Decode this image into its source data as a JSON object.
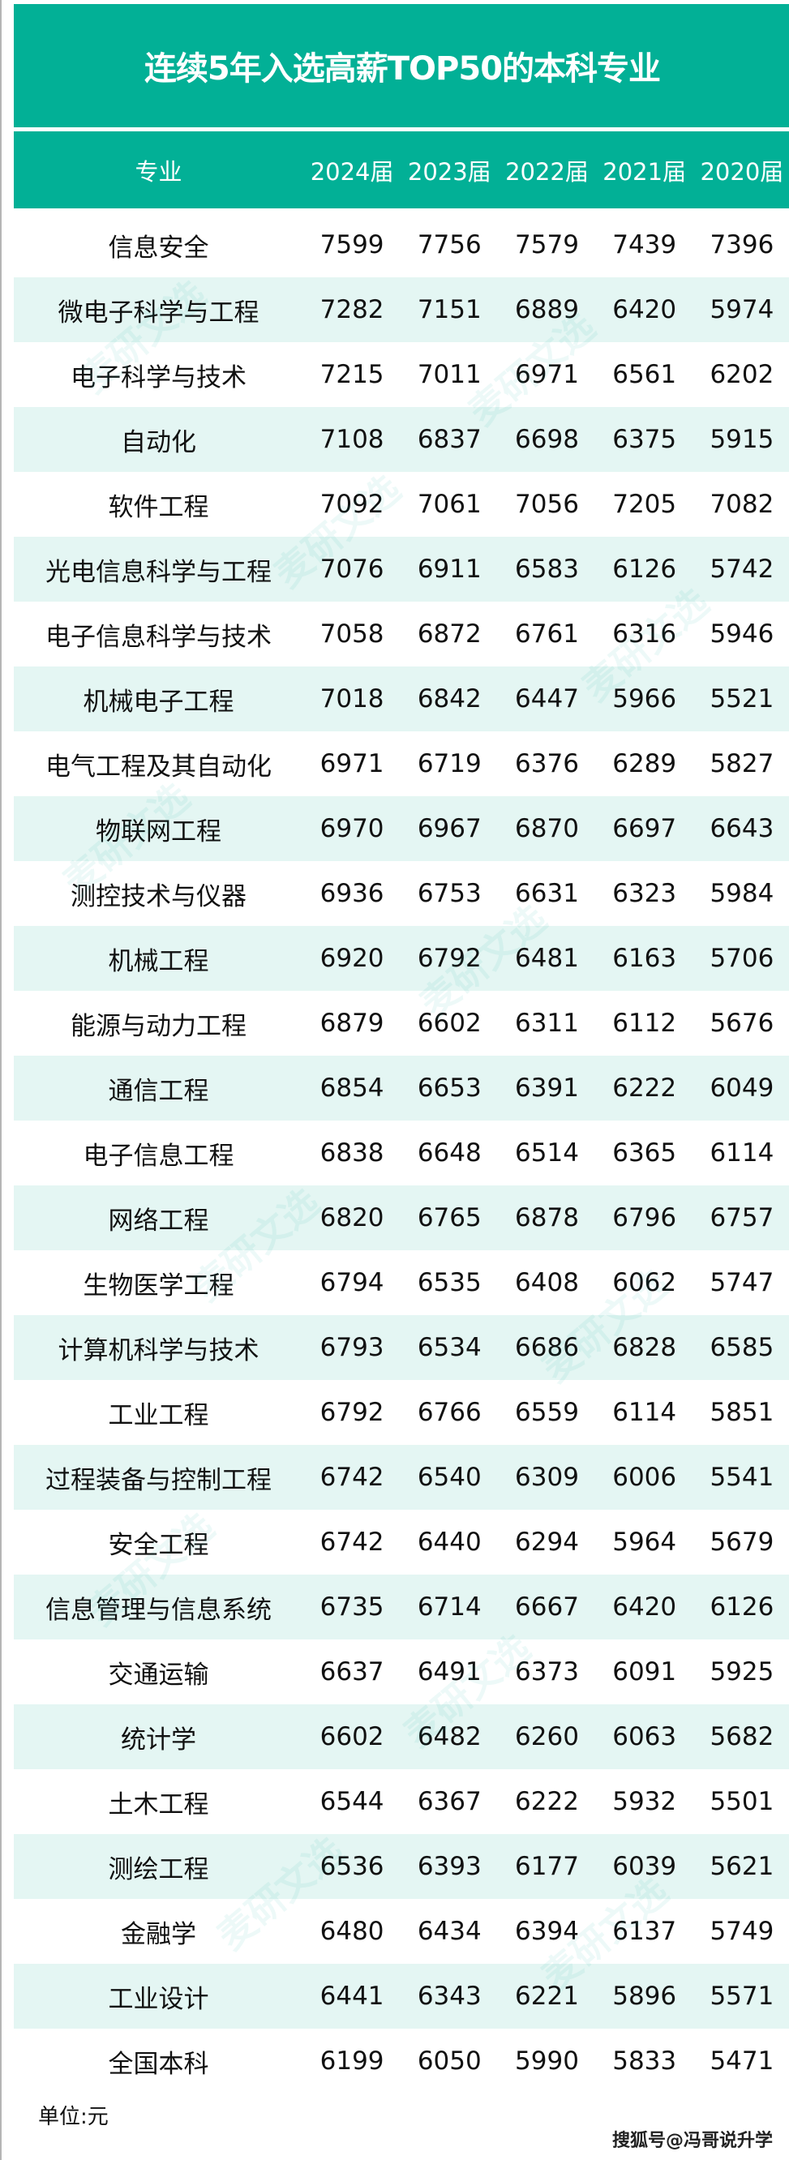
{
  "title": "连续5年入选高薪TOP50的本科专业",
  "columns": [
    "专业",
    "2024届",
    "2023届",
    "2022届",
    "2021届",
    "2020届"
  ],
  "rows": [
    [
      "信息安全",
      "7599",
      "7756",
      "7579",
      "7439",
      "7396"
    ],
    [
      "微电子科学与工程",
      "7282",
      "7151",
      "6889",
      "6420",
      "5974"
    ],
    [
      "电子科学与技术",
      "7215",
      "7011",
      "6971",
      "6561",
      "6202"
    ],
    [
      "自动化",
      "7108",
      "6837",
      "6698",
      "6375",
      "5915"
    ],
    [
      "软件工程",
      "7092",
      "7061",
      "7056",
      "7205",
      "7082"
    ],
    [
      "光电信息科学与工程",
      "7076",
      "6911",
      "6583",
      "6126",
      "5742"
    ],
    [
      "电子信息科学与技术",
      "7058",
      "6872",
      "6761",
      "6316",
      "5946"
    ],
    [
      "机械电子工程",
      "7018",
      "6842",
      "6447",
      "5966",
      "5521"
    ],
    [
      "电气工程及其自动化",
      "6971",
      "6719",
      "6376",
      "6289",
      "5827"
    ],
    [
      "物联网工程",
      "6970",
      "6967",
      "6870",
      "6697",
      "6643"
    ],
    [
      "测控技术与仪器",
      "6936",
      "6753",
      "6631",
      "6323",
      "5984"
    ],
    [
      "机械工程",
      "6920",
      "6792",
      "6481",
      "6163",
      "5706"
    ],
    [
      "能源与动力工程",
      "6879",
      "6602",
      "6311",
      "6112",
      "5676"
    ],
    [
      "通信工程",
      "6854",
      "6653",
      "6391",
      "6222",
      "6049"
    ],
    [
      "电子信息工程",
      "6838",
      "6648",
      "6514",
      "6365",
      "6114"
    ],
    [
      "网络工程",
      "6820",
      "6765",
      "6878",
      "6796",
      "6757"
    ],
    [
      "生物医学工程",
      "6794",
      "6535",
      "6408",
      "6062",
      "5747"
    ],
    [
      "计算机科学与技术",
      "6793",
      "6534",
      "6686",
      "6828",
      "6585"
    ],
    [
      "工业工程",
      "6792",
      "6766",
      "6559",
      "6114",
      "5851"
    ],
    [
      "过程装备与控制工程",
      "6742",
      "6540",
      "6309",
      "6006",
      "5541"
    ],
    [
      "安全工程",
      "6742",
      "6440",
      "6294",
      "5964",
      "5679"
    ],
    [
      "信息管理与信息系统",
      "6735",
      "6714",
      "6667",
      "6420",
      "6126"
    ],
    [
      "交通运输",
      "6637",
      "6491",
      "6373",
      "6091",
      "5925"
    ],
    [
      "统计学",
      "6602",
      "6482",
      "6260",
      "6063",
      "5682"
    ],
    [
      "土木工程",
      "6544",
      "6367",
      "6222",
      "5932",
      "5501"
    ],
    [
      "测绘工程",
      "6536",
      "6393",
      "6177",
      "6039",
      "5621"
    ],
    [
      "金融学",
      "6480",
      "6434",
      "6394",
      "6137",
      "5749"
    ],
    [
      "工业设计",
      "6441",
      "6343",
      "6221",
      "5896",
      "5571"
    ],
    [
      "全国本科",
      "6199",
      "6050",
      "5990",
      "5833",
      "5471"
    ]
  ],
  "unit": "单位:元",
  "source": "搜狐号@冯哥说升学",
  "watermark": "麦研文选",
  "colors": {
    "accent": "#02b096",
    "alt_row": "#e4f6f3"
  }
}
